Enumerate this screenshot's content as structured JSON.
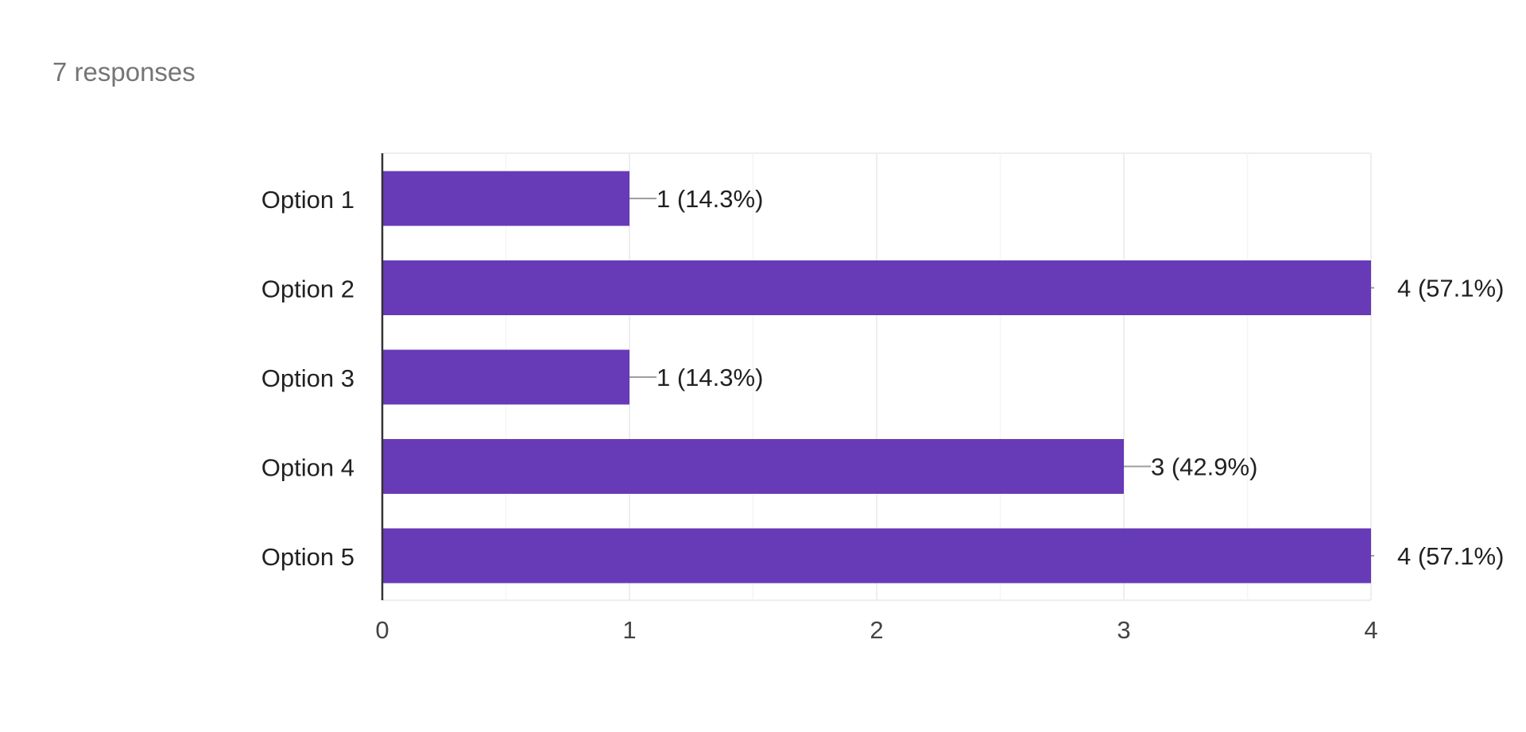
{
  "header": {
    "responses_label": "7 responses"
  },
  "colors": {
    "bar": "#673ab7",
    "gridline": "#eeeeee",
    "axis": "#333333",
    "leader": "#9e9e9e",
    "label_text": "#212121",
    "tick_text": "#444444"
  },
  "chart_data": {
    "type": "bar",
    "orientation": "horizontal",
    "categories": [
      "Option 1",
      "Option 2",
      "Option 3",
      "Option 4",
      "Option 5"
    ],
    "values": [
      1,
      4,
      1,
      3,
      4
    ],
    "data_labels": [
      "1 (14.3%)",
      "4 (57.1%)",
      "1 (14.3%)",
      "3 (42.9%)",
      "4 (57.1%)"
    ],
    "xlim": [
      0,
      4
    ],
    "xticks": [
      0,
      1,
      2,
      3,
      4
    ],
    "minor_gridlines": [
      0.5,
      1.5,
      2.5,
      3.5
    ],
    "grid": true,
    "legend": "none",
    "title": "",
    "xlabel": "",
    "ylabel": ""
  }
}
